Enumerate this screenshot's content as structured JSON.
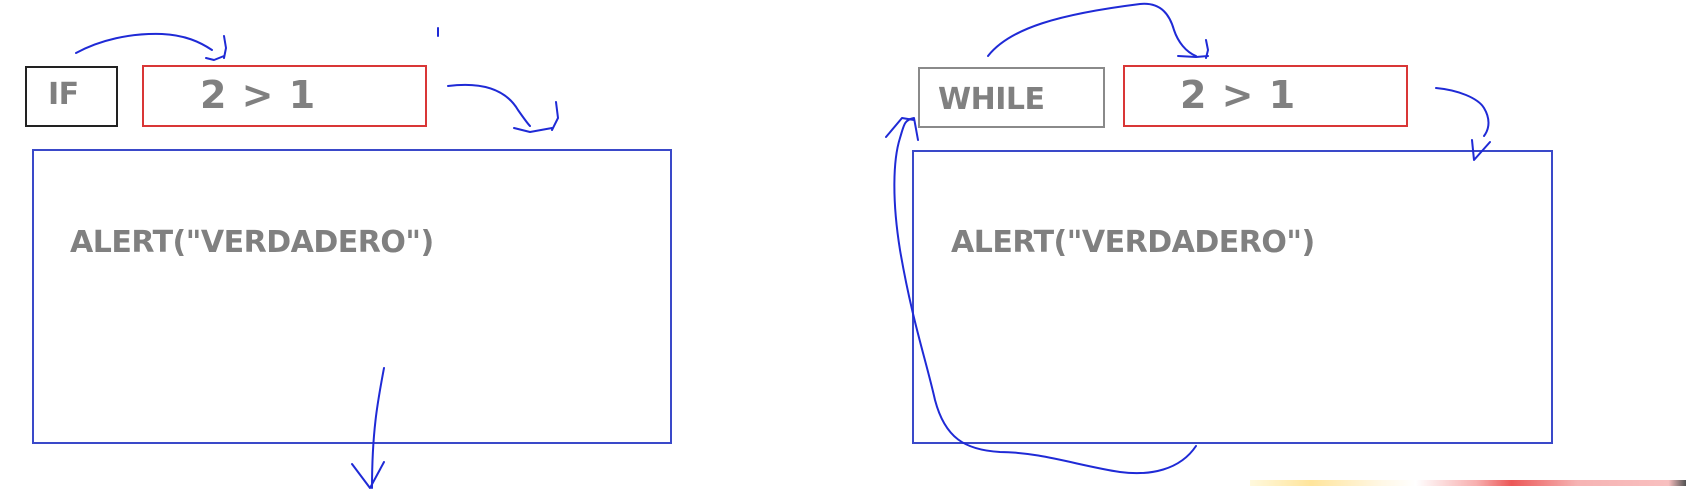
{
  "if_block": {
    "keyword": "IF",
    "condition": "2 > 1",
    "statement": "ALERT(\"VERDADERO\")"
  },
  "while_block": {
    "keyword": "WHILE",
    "condition": "2 > 1",
    "statement": "ALERT(\"VERDADERO\")"
  },
  "colors": {
    "text": "#808080",
    "condition_border": "#d93636",
    "body_border": "#3a49c9",
    "arrow_stroke": "#1f2ad6"
  }
}
